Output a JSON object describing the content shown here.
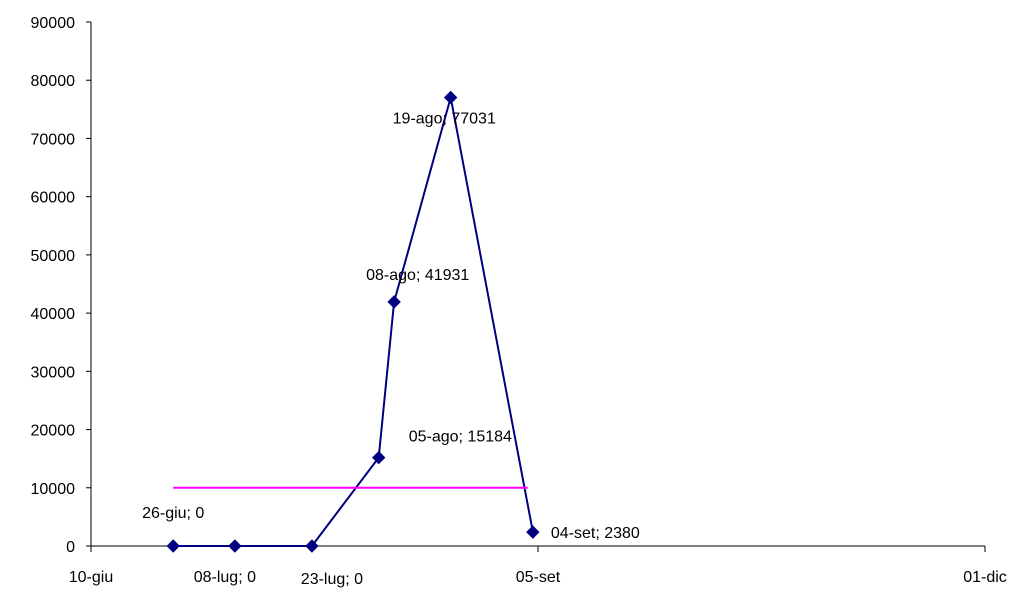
{
  "chart_data": {
    "type": "line",
    "title": "",
    "xlabel": "",
    "ylabel": "",
    "ylim": [
      0,
      90000
    ],
    "yticks": [
      0,
      10000,
      20000,
      30000,
      40000,
      50000,
      60000,
      70000,
      80000,
      90000
    ],
    "xlim": [
      "2000-06-10",
      "2000-12-01"
    ],
    "xticks": [
      {
        "date": "2000-06-10",
        "label": "10-giu"
      },
      {
        "date": "2000-09-05",
        "label": "05-set"
      },
      {
        "date": "2000-12-01",
        "label": "01-dic"
      }
    ],
    "grid": false,
    "legend": "none",
    "series": [
      {
        "color": "#000080",
        "marker": "diamond",
        "points": [
          {
            "date": "2000-06-26",
            "value": 0,
            "label": "26-giu; 0"
          },
          {
            "date": "2000-07-08",
            "value": 0,
            "label": "08-lug; 0"
          },
          {
            "date": "2000-07-23",
            "value": 0,
            "label": "23-lug; 0"
          },
          {
            "date": "2000-08-05",
            "value": 15184,
            "label": "05-ago; 15184"
          },
          {
            "date": "2000-08-08",
            "value": 41931,
            "label": "08-ago; 41931"
          },
          {
            "date": "2000-08-19",
            "value": 77031,
            "label": "19-ago; 77031"
          },
          {
            "date": "2000-09-04",
            "value": 2380,
            "label": "04-set; 2380"
          }
        ]
      },
      {
        "color": "#ff00ff",
        "marker": "none",
        "points": [
          {
            "date": "2000-06-26",
            "value": 10000
          },
          {
            "date": "2000-09-03",
            "value": 10000
          }
        ]
      }
    ]
  }
}
